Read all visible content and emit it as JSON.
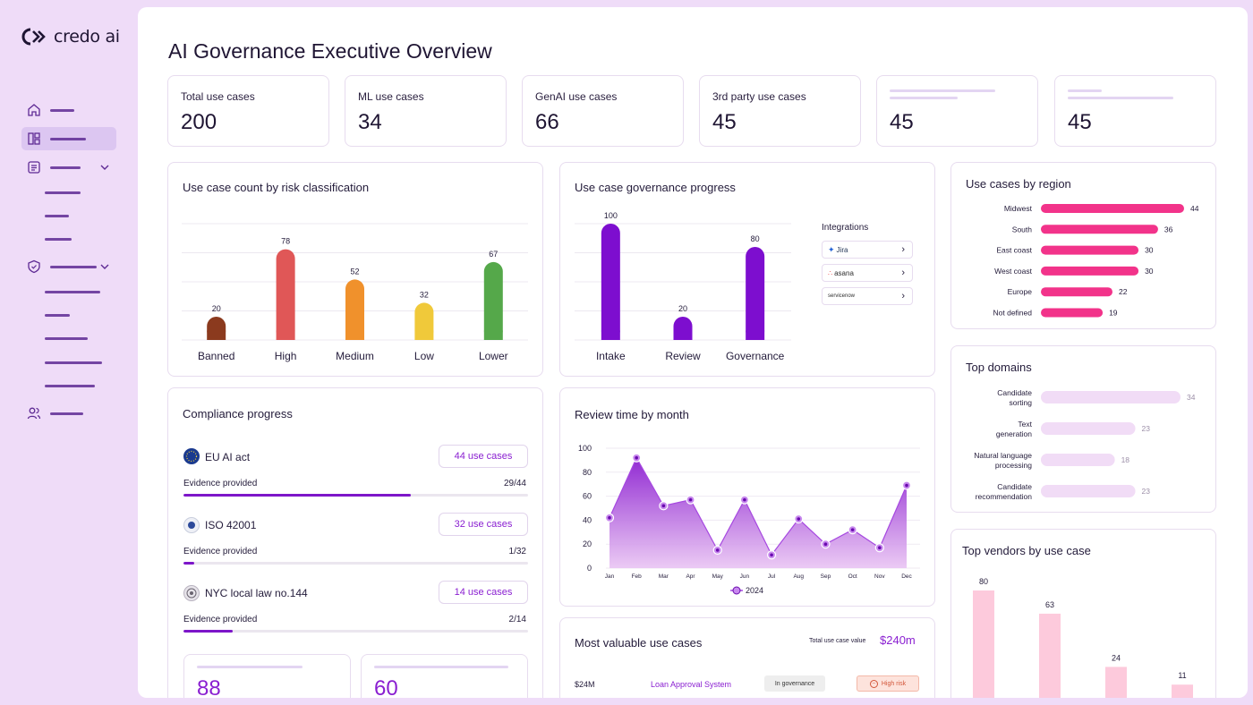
{
  "brand": {
    "name": "credo ai",
    "accent": "#8a1fd1"
  },
  "sidebar": {
    "items": [
      {
        "icon": "home-icon"
      },
      {
        "icon": "dashboard-icon",
        "active": true
      },
      {
        "icon": "list-icon",
        "expandable": true
      },
      {
        "icon": "shield-icon",
        "expandable": true
      },
      {
        "icon": "users-icon"
      }
    ]
  },
  "page": {
    "title": "AI Governance Executive Overview"
  },
  "stats": [
    {
      "label": "Total use cases",
      "value": "200"
    },
    {
      "label": "ML use cases",
      "value": "34"
    },
    {
      "label": "GenAI use cases",
      "value": "66"
    },
    {
      "label": "3rd party use cases",
      "value": "45"
    },
    {
      "label": "",
      "value": "45"
    },
    {
      "label": "",
      "value": "45"
    }
  ],
  "risk_chart": {
    "title": "Use case count by risk classification"
  },
  "progress_chart": {
    "title": "Use case governance progress",
    "integrations_title": "Integrations",
    "integrations": [
      "Jira",
      "asana",
      "servicenow"
    ]
  },
  "region_chart": {
    "title": "Use cases by region"
  },
  "domains_chart": {
    "title": "Top domains"
  },
  "vendors_chart": {
    "title": "Top vendors by use case"
  },
  "review_chart": {
    "title": "Review time by month",
    "legend": "2024"
  },
  "compliance": {
    "title": "Compliance progress",
    "items": [
      {
        "name": "EU AI act",
        "button": "44 use cases",
        "evidence_label": "Evidence provided",
        "count": "29/44",
        "done": 29,
        "total": 44
      },
      {
        "name": "ISO 42001",
        "button": "32 use cases",
        "evidence_label": "Evidence provided",
        "count": "1/32",
        "done": 1,
        "total": 32
      },
      {
        "name": "NYC local law no.144",
        "button": "14 use cases",
        "evidence_label": "Evidence provided",
        "count": "2/14",
        "done": 2,
        "total": 14
      }
    ],
    "mini_values": [
      "88",
      "60"
    ]
  },
  "valuable": {
    "title": "Most valuable use cases",
    "total_label": "Total use case value",
    "total_value": "$240m",
    "rows": [
      {
        "value": "$24M",
        "name": "Loan Approval System",
        "status": "In governance",
        "risk": "High risk"
      }
    ]
  },
  "chart_data": [
    {
      "type": "bar",
      "title": "Use case count by risk classification",
      "categories": [
        "Banned",
        "High",
        "Medium",
        "Low",
        "Lower"
      ],
      "values": [
        20,
        78,
        52,
        32,
        67
      ],
      "colors": [
        "#8b3a1e",
        "#e05757",
        "#f0912c",
        "#f0c93a",
        "#55a84a"
      ],
      "ylim": [
        0,
        100
      ]
    },
    {
      "type": "bar",
      "title": "Use case governance progress",
      "categories": [
        "Intake",
        "Review",
        "Governance"
      ],
      "values": [
        100,
        20,
        80
      ],
      "color": "#7d0ecf",
      "ylim": [
        0,
        100
      ]
    },
    {
      "type": "bar",
      "orientation": "horizontal",
      "title": "Use cases by region",
      "categories": [
        "Midwest",
        "South",
        "East coast",
        "West coast",
        "Europe",
        "Not defined"
      ],
      "values": [
        44,
        36,
        30,
        30,
        22,
        19
      ],
      "color": "#f2338a"
    },
    {
      "type": "bar",
      "orientation": "horizontal",
      "title": "Top domains",
      "categories": [
        "Candidate sorting",
        "Text generation",
        "Natural language processing",
        "Candidate recommendation"
      ],
      "values": [
        34,
        23,
        18,
        23
      ],
      "color": "#f1dcf6"
    },
    {
      "type": "area",
      "title": "Review time by month",
      "x": [
        "Jan",
        "Feb",
        "Mar",
        "Apr",
        "May",
        "Jun",
        "Jul",
        "Aug",
        "Sep",
        "Oct",
        "Nov",
        "Dec"
      ],
      "series": [
        {
          "name": "2024",
          "values": [
            42,
            92,
            52,
            57,
            15,
            57,
            11,
            41,
            20,
            32,
            17,
            69
          ]
        }
      ],
      "yticks": [
        0,
        20,
        40,
        60,
        80,
        100
      ],
      "ylim": [
        0,
        100
      ],
      "color": "#9a2ad6"
    },
    {
      "type": "bar",
      "title": "Top vendors by use case",
      "categories": [
        "",
        "",
        "",
        ""
      ],
      "values": [
        80,
        63,
        24,
        11
      ],
      "color": "#fdcadc"
    }
  ]
}
